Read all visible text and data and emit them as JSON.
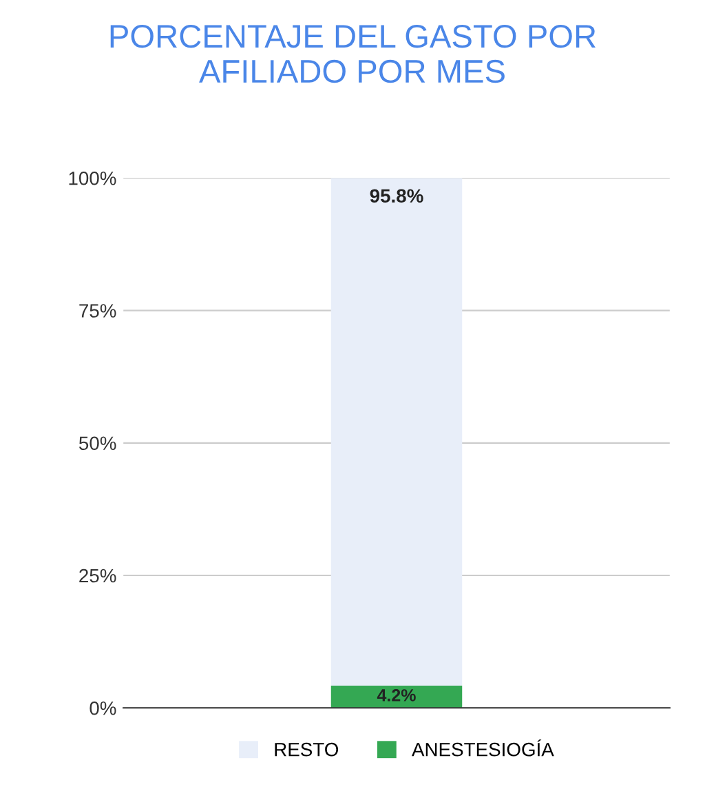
{
  "chart_data": {
    "type": "bar",
    "stacked": true,
    "title": "PORCENTAJE DEL GASTO POR AFILIADO POR MES",
    "categories": [
      null
    ],
    "series": [
      {
        "name": "ANESTESIOGÍA",
        "color": "#34a853",
        "values": [
          4.2
        ],
        "value_labels": [
          "4.2%"
        ]
      },
      {
        "name": "RESTO",
        "color": "#e8eef9",
        "values": [
          95.8
        ],
        "value_labels": [
          "95.8%"
        ]
      }
    ],
    "ylim": [
      0,
      100
    ],
    "yticks": [
      {
        "value": 0,
        "label": "0%"
      },
      {
        "value": 25,
        "label": "25%"
      },
      {
        "value": 50,
        "label": "50%"
      },
      {
        "value": 75,
        "label": "75%"
      },
      {
        "value": 100,
        "label": "100%"
      }
    ],
    "grid": "y",
    "legend": "bottom"
  }
}
